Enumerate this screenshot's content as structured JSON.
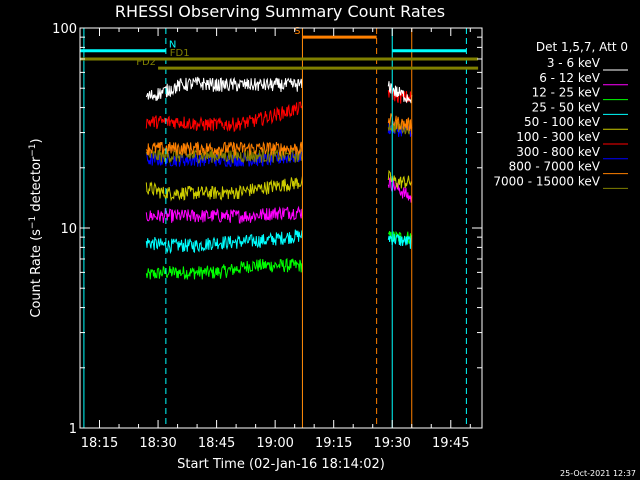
{
  "chart_data": {
    "type": "line",
    "title": "RHESSI Observing Summary Count Rates",
    "xlabel": "Start Time (02-Jan-16 18:14:02)",
    "ylabel": "Count Rate (s⁻¹ detector⁻¹)",
    "ylabel_parts": {
      "main": "Count Rate (s",
      "sup1": "−1",
      "mid": " detector",
      "sup2": "−1",
      "end": ")"
    },
    "y_scale": "log",
    "xlim_minutes": [
      "18:10",
      "19:53"
    ],
    "ylim": [
      1,
      100
    ],
    "x_ticks": [
      "18:15",
      "18:30",
      "18:45",
      "19:00",
      "19:15",
      "19:30",
      "19:45"
    ],
    "y_ticks": [
      "1",
      "10",
      "100"
    ],
    "legend_title": "Det 1,5,7, Att 0",
    "legend_position": "top-right, outside plot",
    "timestamp": "25-Oct-2021 12:37",
    "series": [
      {
        "name": "3 - 6 keV",
        "color": "#ffffff",
        "segments": [
          {
            "start": "18:27",
            "end": "19:07",
            "values": [
              45,
              48,
              52,
              53,
              52,
              52,
              52,
              52,
              52,
              52
            ]
          },
          {
            "start": "19:29",
            "end": "19:35",
            "values": [
              52,
              48,
              46,
              45
            ]
          }
        ]
      },
      {
        "name": "6 - 12 keV",
        "color": "#ff00ff",
        "segments": [
          {
            "start": "18:27",
            "end": "19:07",
            "values": [
              11.5,
              11.5,
              11.5,
              11.5,
              11.5,
              11.5,
              11.5,
              11.8,
              12,
              12
            ]
          },
          {
            "start": "19:29",
            "end": "19:35",
            "values": [
              17,
              16,
              15,
              14
            ]
          }
        ]
      },
      {
        "name": "12 - 25 keV",
        "color": "#00ff00",
        "segments": [
          {
            "start": "18:27",
            "end": "19:07",
            "values": [
              5.8,
              6,
              6,
              6,
              6,
              6.2,
              6.5,
              6.5,
              6.5,
              6.5
            ]
          },
          {
            "start": "19:29",
            "end": "19:35",
            "values": [
              9,
              9,
              9,
              9
            ]
          }
        ]
      },
      {
        "name": "25 - 50 keV",
        "color": "#00ffff",
        "segments": [
          {
            "start": "18:27",
            "end": "19:07",
            "values": [
              8.5,
              8.2,
              8.2,
              8.2,
              8.5,
              8.5,
              8.6,
              8.7,
              9,
              9.2
            ]
          },
          {
            "start": "19:29",
            "end": "19:35",
            "values": [
              9,
              8.8,
              8.6,
              8.5
            ]
          }
        ]
      },
      {
        "name": "50 - 100 keV",
        "color": "#cccc00",
        "segments": [
          {
            "start": "18:27",
            "end": "19:07",
            "values": [
              16,
              15,
              15,
              15,
              15,
              15,
              15.5,
              16,
              16.5,
              17
            ]
          },
          {
            "start": "19:29",
            "end": "19:35",
            "values": [
              18,
              17,
              17,
              17
            ]
          }
        ]
      },
      {
        "name": "100 - 300 keV",
        "color": "#ff0000",
        "segments": [
          {
            "start": "18:27",
            "end": "19:07",
            "values": [
              34,
              34,
              34,
              33,
              33,
              33,
              34,
              36,
              38,
              40
            ]
          },
          {
            "start": "19:29",
            "end": "19:35",
            "values": [
              48,
              46,
              45,
              45
            ]
          }
        ]
      },
      {
        "name": "300 - 800 keV",
        "color": "#0000ff",
        "segments": [
          {
            "start": "18:27",
            "end": "19:07",
            "values": [
              22,
              22,
              22,
              22,
              22,
              22,
              22,
              22,
              22.5,
              23
            ]
          },
          {
            "start": "19:29",
            "end": "19:35",
            "values": [
              32,
              31,
              31,
              31
            ]
          }
        ]
      },
      {
        "name": "800 - 7000 keV",
        "color": "#ff8000",
        "segments": [
          {
            "start": "18:27",
            "end": "19:07",
            "values": [
              25,
              25,
              25,
              25,
              25,
              25,
              25,
              25,
              25,
              25
            ]
          },
          {
            "start": "19:29",
            "end": "19:35",
            "values": [
              35,
              34,
              33,
              33
            ]
          }
        ]
      },
      {
        "name": "7000 - 15000 keV",
        "color": "#808000",
        "segments": [
          {
            "start": "18:27",
            "end": "19:07",
            "values": [
              23,
              23,
              23,
              23,
              23,
              23,
              23,
              23,
              23,
              23
            ]
          },
          {
            "start": "19:29",
            "end": "19:35",
            "values": [
              33,
              32,
              32,
              32
            ]
          }
        ]
      }
    ],
    "flag_bars": [
      {
        "label": "N",
        "color": "#00ffff",
        "y": 77,
        "ranges": [
          [
            "18:10",
            "18:32"
          ],
          [
            "19:30",
            "19:49"
          ]
        ]
      },
      {
        "label": "FD1",
        "color": "#808000",
        "y": 70,
        "ranges": [
          [
            "18:10",
            "19:52"
          ]
        ]
      },
      {
        "label": "FD2",
        "color": "#808000",
        "y": 63,
        "ranges": [
          [
            "18:30",
            "19:52"
          ]
        ]
      },
      {
        "label": "S",
        "color": "#ff8000",
        "y": 90,
        "ranges": [
          [
            "19:07",
            "19:26"
          ]
        ]
      }
    ],
    "vertical_lines": [
      {
        "time": "18:11",
        "color": "#00ffff",
        "style": "solid"
      },
      {
        "time": "18:32",
        "color": "#00ffff",
        "style": "dashed"
      },
      {
        "time": "19:07",
        "color": "#00ffff",
        "style": "solid"
      },
      {
        "time": "19:07",
        "color": "#ff8000",
        "style": "solid"
      },
      {
        "time": "19:26",
        "color": "#ff8000",
        "style": "dashed"
      },
      {
        "time": "19:30",
        "color": "#00ffff",
        "style": "solid"
      },
      {
        "time": "19:35",
        "color": "#ff8000",
        "style": "solid"
      },
      {
        "time": "19:49",
        "color": "#00ffff",
        "style": "dashed"
      }
    ]
  }
}
